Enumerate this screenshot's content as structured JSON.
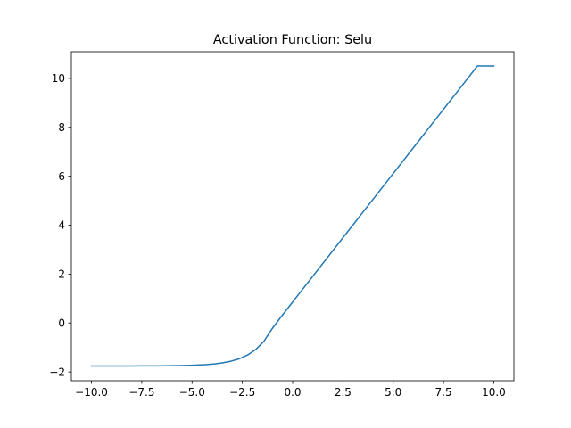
{
  "chart_data": {
    "type": "line",
    "title": "Activation Function: Selu",
    "xlabel": "",
    "ylabel": "",
    "xlim": [
      -11.0,
      11.0
    ],
    "ylim": [
      -2.36,
      11.09
    ],
    "grid": false,
    "x_ticks": [
      -10.0,
      -7.5,
      -5.0,
      -2.5,
      0.0,
      2.5,
      5.0,
      7.5,
      10.0
    ],
    "x_tick_labels": [
      "−10.0",
      "−7.5",
      "−5.0",
      "−2.5",
      "0.0",
      "2.5",
      "5.0",
      "7.5",
      "10.0"
    ],
    "y_ticks": [
      -2,
      0,
      2,
      4,
      6,
      8,
      10
    ],
    "y_tick_labels": [
      "−2",
      "0",
      "2",
      "4",
      "6",
      "8",
      "10"
    ],
    "series": [
      {
        "color": "#1f77b4",
        "x": [
          -10.0,
          -9.5918,
          -9.1837,
          -8.7755,
          -8.3673,
          -7.9592,
          -7.551,
          -7.1429,
          -6.7347,
          -6.3265,
          -5.9184,
          -5.5102,
          -5.102,
          -4.6939,
          -4.2857,
          -3.8776,
          -3.4694,
          -3.0612,
          -2.6531,
          -2.2449,
          -1.8367,
          -1.4286,
          -1.0204,
          -0.6122,
          -0.2041,
          0.2041,
          0.6122,
          1.0204,
          1.4286,
          1.8367,
          2.2449,
          2.6531,
          3.0612,
          3.4694,
          3.8776,
          4.2857,
          4.6939,
          5.102,
          5.5102,
          5.9184,
          6.3265,
          6.7347,
          7.1429,
          7.551,
          7.9592,
          8.3673,
          8.7755,
          9.1837,
          9.5918,
          10.0
        ],
        "y": [
          -1.758,
          -1.758,
          -1.7578,
          -1.7575,
          -1.7572,
          -1.7567,
          -1.7559,
          -1.7548,
          -1.7531,
          -1.7506,
          -1.7468,
          -1.7411,
          -1.7325,
          -1.7196,
          -1.7002,
          -1.671,
          -1.627,
          -1.5609,
          -1.4615,
          -1.3117,
          -1.0863,
          -0.747,
          -0.2364,
          0.2144,
          0.6432,
          1.072,
          1.5009,
          1.9297,
          2.3585,
          2.7874,
          3.2162,
          3.645,
          4.0739,
          4.5027,
          4.9315,
          5.3604,
          5.7892,
          6.218,
          6.6469,
          7.0757,
          7.5045,
          7.9334,
          8.3622,
          8.791,
          9.2199,
          9.6487,
          10.0775,
          10.5064,
          10.5064,
          10.507
        ]
      }
    ]
  }
}
